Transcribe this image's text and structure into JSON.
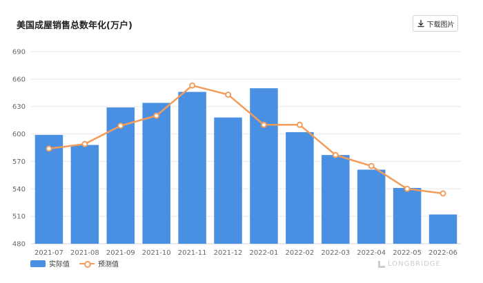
{
  "title": "美国成屋销售总数年化(万户)",
  "download_label": "下载图片",
  "brand": "LONGBRIDGE",
  "chart_data": {
    "type": "bar",
    "title": "美国成屋销售总数年化(万户)",
    "xlabel": "",
    "ylabel": "",
    "categories": [
      "2021-07",
      "2021-08",
      "2021-09",
      "2021-10",
      "2021-11",
      "2021-12",
      "2022-01",
      "2022-02",
      "2022-03",
      "2022-04",
      "2022-05",
      "2022-06"
    ],
    "ylim": [
      480,
      690
    ],
    "yticks": [
      480,
      510,
      540,
      570,
      600,
      630,
      660,
      690
    ],
    "grid": true,
    "legend_position": "bottom-left",
    "series": [
      {
        "name": "实际值",
        "type": "bar",
        "color": "#4a90e2",
        "values": [
          599,
          588,
          629,
          634,
          646,
          618,
          650,
          602,
          577,
          561,
          541,
          512
        ]
      },
      {
        "name": "预测值",
        "type": "line",
        "color": "#f39c5a",
        "values": [
          584,
          589,
          609,
          620,
          653,
          643,
          610,
          610,
          577,
          565,
          540,
          535
        ]
      }
    ]
  }
}
